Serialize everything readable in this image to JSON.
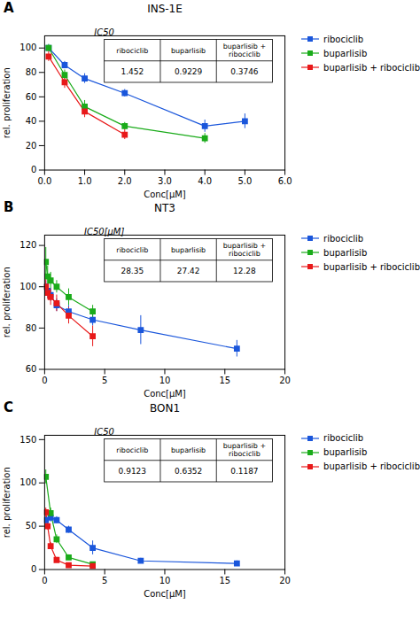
{
  "chart_data": [
    {
      "type": "line",
      "panel_label": "A",
      "title": "INS-1E",
      "xlabel": "Conc[μM]",
      "ylabel": "rel. proliferation",
      "xlim": [
        0,
        6
      ],
      "ylim": [
        0,
        110
      ],
      "xticks": [
        0,
        1,
        2,
        3,
        4,
        5,
        6
      ],
      "yticks": [
        0,
        20,
        40,
        60,
        80,
        100
      ],
      "grid": false,
      "legend": "right",
      "marker": "square",
      "line_style": "solid",
      "series": [
        {
          "name": "ribociclib",
          "color": "#1a56db",
          "x": [
            0.1,
            0.5,
            1.0,
            2.0,
            4.0,
            5.0
          ],
          "values": [
            100,
            86,
            75,
            63,
            36,
            40
          ],
          "yerr": [
            2,
            3,
            4,
            3,
            5,
            6
          ]
        },
        {
          "name": "buparlisib",
          "color": "#1aab1a",
          "x": [
            0.1,
            0.5,
            1.0,
            2.0,
            4.0
          ],
          "values": [
            100,
            78,
            52,
            36,
            26
          ],
          "yerr": [
            3,
            4,
            5,
            3,
            4
          ]
        },
        {
          "name": "buparlisib + ribociclib",
          "color": "#e8191a",
          "x": [
            0.1,
            0.5,
            1.0,
            2.0
          ],
          "values": [
            93,
            72,
            48,
            29
          ],
          "yerr": [
            4,
            5,
            5,
            4
          ]
        }
      ],
      "table": {
        "title": "IC50",
        "columns": [
          "ribociclib",
          "buparlisib",
          "buparlisib + ribociclib"
        ],
        "values": [
          1.452,
          0.9229,
          0.3746
        ]
      }
    },
    {
      "type": "line",
      "panel_label": "B",
      "title": "NT3",
      "xlabel": "Conc[μM]",
      "ylabel": "rel. proliferation",
      "xlim": [
        0,
        20
      ],
      "ylim": [
        60,
        125
      ],
      "xticks": [
        0,
        5,
        10,
        15,
        20
      ],
      "yticks": [
        60,
        80,
        100,
        120
      ],
      "grid": false,
      "legend": "right",
      "marker": "square",
      "line_style": "solid",
      "series": [
        {
          "name": "ribociclib",
          "color": "#1a56db",
          "x": [
            0.1,
            0.25,
            0.5,
            1.0,
            2.0,
            4.0,
            8.0,
            16.0
          ],
          "values": [
            100,
            98,
            96,
            91,
            88,
            84,
            79,
            70
          ],
          "yerr": [
            3,
            2,
            3,
            3,
            3,
            3,
            7,
            4
          ]
        },
        {
          "name": "buparlisib",
          "color": "#1aab1a",
          "x": [
            0.1,
            0.25,
            0.5,
            1.0,
            2.0,
            4.0
          ],
          "values": [
            112,
            105,
            103,
            100,
            95,
            88
          ],
          "yerr": [
            7,
            5,
            4,
            3,
            4,
            3
          ]
        },
        {
          "name": "buparlisib + ribociclib",
          "color": "#e8191a",
          "x": [
            0.1,
            0.25,
            0.5,
            1.0,
            2.0,
            4.0
          ],
          "values": [
            100,
            97,
            95,
            92,
            86,
            76
          ],
          "yerr": [
            4,
            3,
            4,
            4,
            4,
            5
          ]
        }
      ],
      "table": {
        "title": "IC50[μM]",
        "columns": [
          "ribociclib",
          "buparlisib",
          "buparlisib + ribociclib"
        ],
        "values": [
          28.35,
          27.42,
          12.28
        ]
      }
    },
    {
      "type": "line",
      "panel_label": "C",
      "title": "BON1",
      "xlabel": "Conc[μM]",
      "ylabel": "rel. proliferation",
      "xlim": [
        0,
        20
      ],
      "ylim": [
        0,
        155
      ],
      "xticks": [
        0,
        5,
        10,
        15,
        20
      ],
      "yticks": [
        0,
        50,
        100,
        150
      ],
      "grid": false,
      "legend": "right",
      "marker": "square",
      "line_style": "solid",
      "series": [
        {
          "name": "ribociclib",
          "color": "#1a56db",
          "x": [
            0.1,
            0.5,
            1.0,
            2.0,
            4.0,
            8.0,
            16.0
          ],
          "values": [
            57,
            60,
            57,
            46,
            25,
            10,
            7
          ],
          "yerr": [
            4,
            5,
            4,
            4,
            8,
            3,
            3
          ]
        },
        {
          "name": "buparlisib",
          "color": "#1aab1a",
          "x": [
            0.1,
            0.5,
            1.0,
            2.0,
            4.0
          ],
          "values": [
            107,
            65,
            35,
            14,
            6
          ],
          "yerr": [
            8,
            6,
            5,
            3,
            2
          ]
        },
        {
          "name": "buparlisib + ribociclib",
          "color": "#e8191a",
          "x": [
            0.1,
            0.25,
            0.5,
            1.0,
            2.0,
            4.0
          ],
          "values": [
            66,
            50,
            27,
            11,
            5,
            4
          ],
          "yerr": [
            5,
            4,
            4,
            3,
            2,
            2
          ]
        }
      ],
      "table": {
        "title": "IC50",
        "columns": [
          "ribociclib",
          "buparlisib",
          "buparlisib + ribociclib"
        ],
        "values": [
          0.9123,
          0.6352,
          0.1187
        ]
      }
    }
  ]
}
